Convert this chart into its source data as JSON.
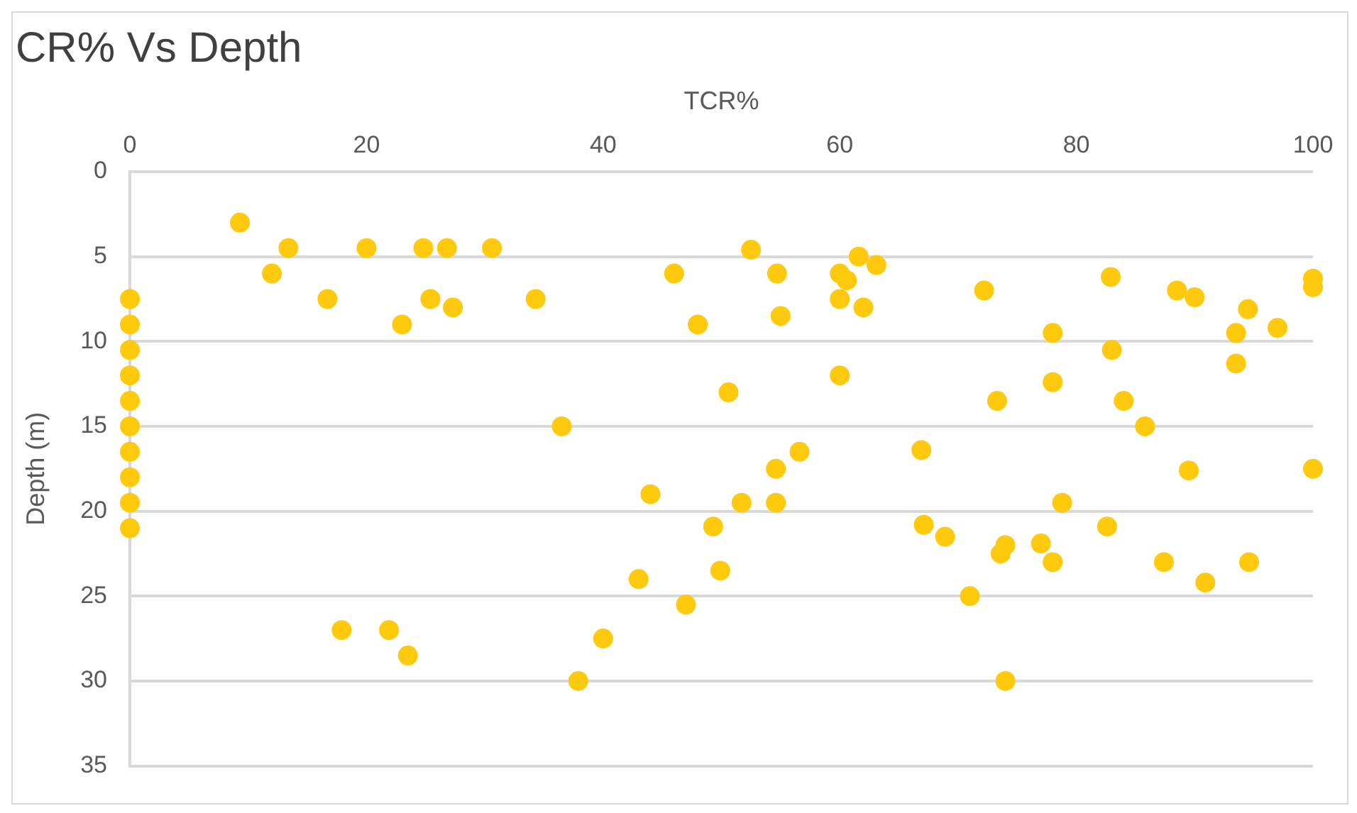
{
  "chart_data": {
    "type": "scatter",
    "title": "CR% Vs Depth",
    "xlabel": "TCR%",
    "ylabel": "Depth (m)",
    "xlim": [
      0,
      100
    ],
    "xticks": [
      0,
      20,
      40,
      60,
      80,
      100
    ],
    "ylim": [
      35,
      0
    ],
    "yticks": [
      0,
      5,
      10,
      15,
      20,
      25,
      30,
      35
    ],
    "grid": "y",
    "marker": "circle",
    "legend": false,
    "series": [
      {
        "color": "#ffc90e",
        "x": [
          0,
          0,
          0,
          0,
          0,
          0,
          0,
          0,
          0,
          0,
          9.3,
          13.4,
          12,
          16.7,
          20,
          23,
          24.8,
          25.4,
          26.8,
          27.3,
          30.6,
          34.3,
          36.5,
          46,
          48,
          52.5,
          50.6,
          54.7,
          55,
          61.6,
          60,
          60.6,
          63.1,
          60,
          62,
          60,
          72.2,
          82.9,
          88.5,
          90,
          94.5,
          100,
          100,
          78,
          93.5,
          97,
          83,
          93.5,
          78,
          73.3,
          84,
          85.8,
          56.6,
          66.9,
          54.6,
          89.5,
          100,
          44,
          51.7,
          54.6,
          78.8,
          49.3,
          67.1,
          68.9,
          82.6,
          73.6,
          74,
          77,
          78,
          87.4,
          94.6,
          90.9,
          43,
          49.9,
          71,
          47,
          40,
          17.9,
          21.9,
          23.5,
          37.9,
          74
        ],
        "values": [
          7.5,
          9,
          10.5,
          12,
          13.5,
          15,
          16.5,
          18,
          19.5,
          21,
          3,
          4.5,
          6,
          7.5,
          4.5,
          9,
          4.5,
          7.5,
          4.5,
          8,
          4.5,
          7.5,
          15,
          6,
          9,
          4.6,
          13,
          6,
          8.5,
          5,
          6,
          6.4,
          5.5,
          7.5,
          8,
          12,
          7,
          6.2,
          7,
          7.4,
          8.1,
          6.3,
          6.8,
          9.5,
          9.5,
          9.2,
          10.5,
          11.3,
          12.4,
          13.5,
          13.5,
          15,
          16.5,
          16.4,
          17.5,
          17.6,
          17.5,
          19,
          19.5,
          19.5,
          19.5,
          20.9,
          20.8,
          21.5,
          20.9,
          22.5,
          22,
          21.9,
          23,
          23,
          23,
          24.2,
          24,
          23.5,
          25,
          25.5,
          27.5,
          27,
          27,
          28.5,
          30,
          30
        ]
      }
    ]
  }
}
